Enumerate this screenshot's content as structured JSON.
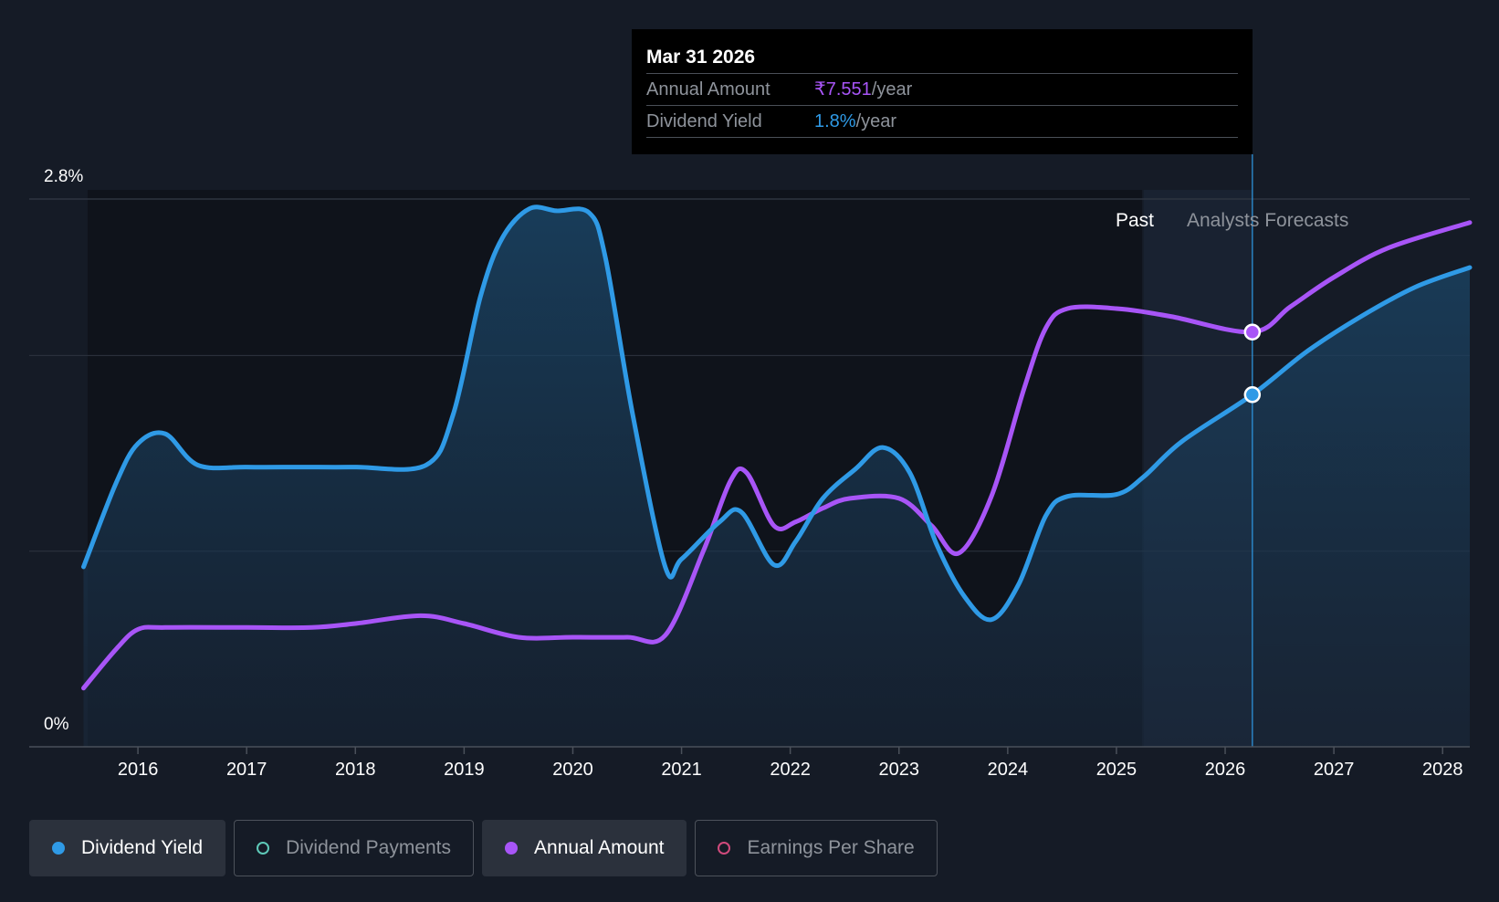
{
  "tooltip": {
    "date": "Mar 31 2026",
    "rows": [
      {
        "label": "Annual Amount",
        "value": "₹7.551",
        "unit": "/year"
      },
      {
        "label": "Dividend Yield",
        "value": "1.8%",
        "unit": "/year"
      }
    ]
  },
  "regions": {
    "past": "Past",
    "forecast": "Analysts Forecasts"
  },
  "legend": [
    {
      "label": "Dividend Yield",
      "color": "#2f9ae6",
      "active": true,
      "filled": true
    },
    {
      "label": "Dividend Payments",
      "color": "#5ec9b8",
      "active": false,
      "filled": false
    },
    {
      "label": "Annual Amount",
      "color": "#a855f7",
      "active": true,
      "filled": true
    },
    {
      "label": "Earnings Per Share",
      "color": "#d04a7c",
      "active": false,
      "filled": false
    }
  ],
  "colors": {
    "background": "#151b26",
    "yield": "#2f9ae6",
    "annual": "#a855f7",
    "grid": "#2e3440"
  },
  "chart_data": {
    "type": "line",
    "y_tick_labels": [
      "2.8%",
      "0%"
    ],
    "ylim": [
      0,
      2.8
    ],
    "xlim": [
      2015.0,
      2028.25
    ],
    "x_ticks": [
      2016,
      2017,
      2018,
      2019,
      2020,
      2021,
      2022,
      2023,
      2024,
      2025,
      2026,
      2027,
      2028
    ],
    "x_tick_labels": [
      "2016",
      "2017",
      "2018",
      "2019",
      "2020",
      "2021",
      "2022",
      "2023",
      "2024",
      "2025",
      "2026",
      "2027",
      "2028"
    ],
    "forecast_start": 2025.25,
    "highlight_x": 2026.25,
    "grid": true,
    "series": [
      {
        "name": "Dividend Yield",
        "unit": "%",
        "color": "#2f9ae6",
        "filled": true,
        "points": [
          [
            2015.5,
            0.92
          ],
          [
            2015.8,
            1.35
          ],
          [
            2016.0,
            1.55
          ],
          [
            2016.25,
            1.6
          ],
          [
            2016.55,
            1.44
          ],
          [
            2017.0,
            1.43
          ],
          [
            2017.5,
            1.43
          ],
          [
            2018.0,
            1.43
          ],
          [
            2018.65,
            1.44
          ],
          [
            2018.9,
            1.7
          ],
          [
            2019.15,
            2.3
          ],
          [
            2019.35,
            2.6
          ],
          [
            2019.6,
            2.75
          ],
          [
            2019.85,
            2.74
          ],
          [
            2020.15,
            2.73
          ],
          [
            2020.3,
            2.5
          ],
          [
            2020.55,
            1.7
          ],
          [
            2020.85,
            0.92
          ],
          [
            2021.0,
            0.96
          ],
          [
            2021.35,
            1.15
          ],
          [
            2021.55,
            1.2
          ],
          [
            2021.85,
            0.93
          ],
          [
            2022.05,
            1.05
          ],
          [
            2022.3,
            1.27
          ],
          [
            2022.6,
            1.42
          ],
          [
            2022.85,
            1.53
          ],
          [
            2023.1,
            1.4
          ],
          [
            2023.35,
            1.03
          ],
          [
            2023.6,
            0.77
          ],
          [
            2023.85,
            0.65
          ],
          [
            2024.1,
            0.83
          ],
          [
            2024.35,
            1.18
          ],
          [
            2024.55,
            1.28
          ],
          [
            2025.0,
            1.29
          ],
          [
            2025.25,
            1.38
          ],
          [
            2025.6,
            1.56
          ],
          [
            2026.25,
            1.8
          ],
          [
            2026.75,
            2.02
          ],
          [
            2027.25,
            2.2
          ],
          [
            2027.75,
            2.35
          ],
          [
            2028.25,
            2.45
          ]
        ]
      },
      {
        "name": "Annual Amount",
        "unit": "₹/year",
        "color": "#a855f7",
        "filled": false,
        "points": [
          [
            2015.5,
            0.3
          ],
          [
            2015.8,
            0.5
          ],
          [
            2016.0,
            0.6
          ],
          [
            2016.25,
            0.61
          ],
          [
            2017.0,
            0.61
          ],
          [
            2017.6,
            0.61
          ],
          [
            2018.0,
            0.63
          ],
          [
            2018.6,
            0.67
          ],
          [
            2019.0,
            0.63
          ],
          [
            2019.5,
            0.56
          ],
          [
            2020.0,
            0.56
          ],
          [
            2020.5,
            0.56
          ],
          [
            2020.85,
            0.57
          ],
          [
            2021.2,
            1.0
          ],
          [
            2021.45,
            1.36
          ],
          [
            2021.6,
            1.4
          ],
          [
            2021.85,
            1.13
          ],
          [
            2022.05,
            1.15
          ],
          [
            2022.3,
            1.22
          ],
          [
            2022.55,
            1.27
          ],
          [
            2023.0,
            1.27
          ],
          [
            2023.3,
            1.13
          ],
          [
            2023.55,
            0.99
          ],
          [
            2023.85,
            1.28
          ],
          [
            2024.15,
            1.83
          ],
          [
            2024.35,
            2.14
          ],
          [
            2024.55,
            2.24
          ],
          [
            2025.0,
            2.24
          ],
          [
            2025.5,
            2.2
          ],
          [
            2026.25,
            2.12
          ],
          [
            2026.6,
            2.25
          ],
          [
            2027.0,
            2.4
          ],
          [
            2027.5,
            2.55
          ],
          [
            2028.25,
            2.68
          ]
        ]
      }
    ],
    "highlight_values": {
      "Dividend Yield": 1.8,
      "Annual Amount": 2.12
    }
  }
}
